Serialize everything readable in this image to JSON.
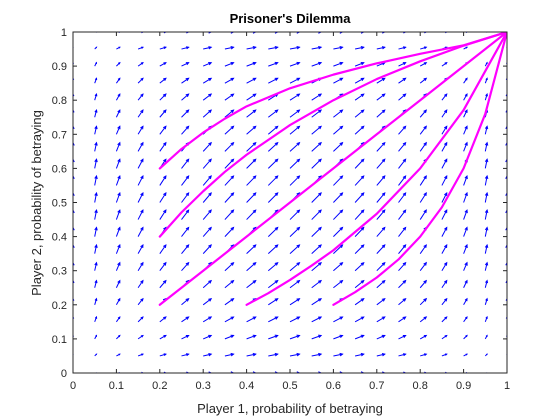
{
  "chart_data": {
    "type": "quiver",
    "title": "Prisoner's Dilemma",
    "xlabel": "Player 1, probability of betraying",
    "ylabel": "Player 2, probability of betraying",
    "xlim": [
      0,
      1
    ],
    "ylim": [
      0,
      1
    ],
    "x_ticks": [
      "0",
      "0.1",
      "0.2",
      "0.3",
      "0.4",
      "0.5",
      "0.6",
      "0.7",
      "0.8",
      "0.9",
      "1"
    ],
    "y_ticks": [
      "0",
      "0.1",
      "0.2",
      "0.3",
      "0.4",
      "0.5",
      "0.6",
      "0.7",
      "0.8",
      "0.9",
      "1"
    ],
    "grid": false,
    "field": {
      "name": "vector field",
      "color": "#0000ff",
      "step": 0.05,
      "description_of_dynamics": "dx = x(1-x), dy = y(1-y)"
    },
    "series": [
      {
        "color": "#ff00ff",
        "x": [
          0.2,
          0.25,
          0.3,
          0.35,
          0.4,
          0.5,
          0.6,
          0.7,
          0.8,
          0.9,
          1.0
        ],
        "y": [
          0.6,
          0.657,
          0.705,
          0.746,
          0.782,
          0.835,
          0.875,
          0.908,
          0.936,
          0.961,
          1.0
        ]
      },
      {
        "color": "#ff00ff",
        "x": [
          0.2,
          0.25,
          0.3,
          0.35,
          0.4,
          0.5,
          0.6,
          0.7,
          0.8,
          0.9,
          1.0
        ],
        "y": [
          0.4,
          0.471,
          0.533,
          0.59,
          0.64,
          0.727,
          0.8,
          0.862,
          0.914,
          0.96,
          1.0
        ]
      },
      {
        "color": "#ff00ff",
        "x": [
          0.2,
          0.3,
          0.4,
          0.5,
          0.6,
          0.7,
          0.8,
          0.9,
          1.0
        ],
        "y": [
          0.2,
          0.3,
          0.4,
          0.5,
          0.6,
          0.7,
          0.8,
          0.9,
          1.0
        ]
      },
      {
        "color": "#ff00ff",
        "x": [
          0.4,
          0.45,
          0.5,
          0.55,
          0.6,
          0.7,
          0.8,
          0.9,
          1.0
        ],
        "y": [
          0.2,
          0.234,
          0.273,
          0.315,
          0.36,
          0.467,
          0.6,
          0.771,
          1.0
        ]
      },
      {
        "color": "#ff00ff",
        "x": [
          0.6,
          0.65,
          0.7,
          0.75,
          0.8,
          0.85,
          0.9,
          0.95,
          1.0
        ],
        "y": [
          0.2,
          0.237,
          0.28,
          0.333,
          0.4,
          0.486,
          0.6,
          0.76,
          1.0
        ]
      }
    ]
  }
}
